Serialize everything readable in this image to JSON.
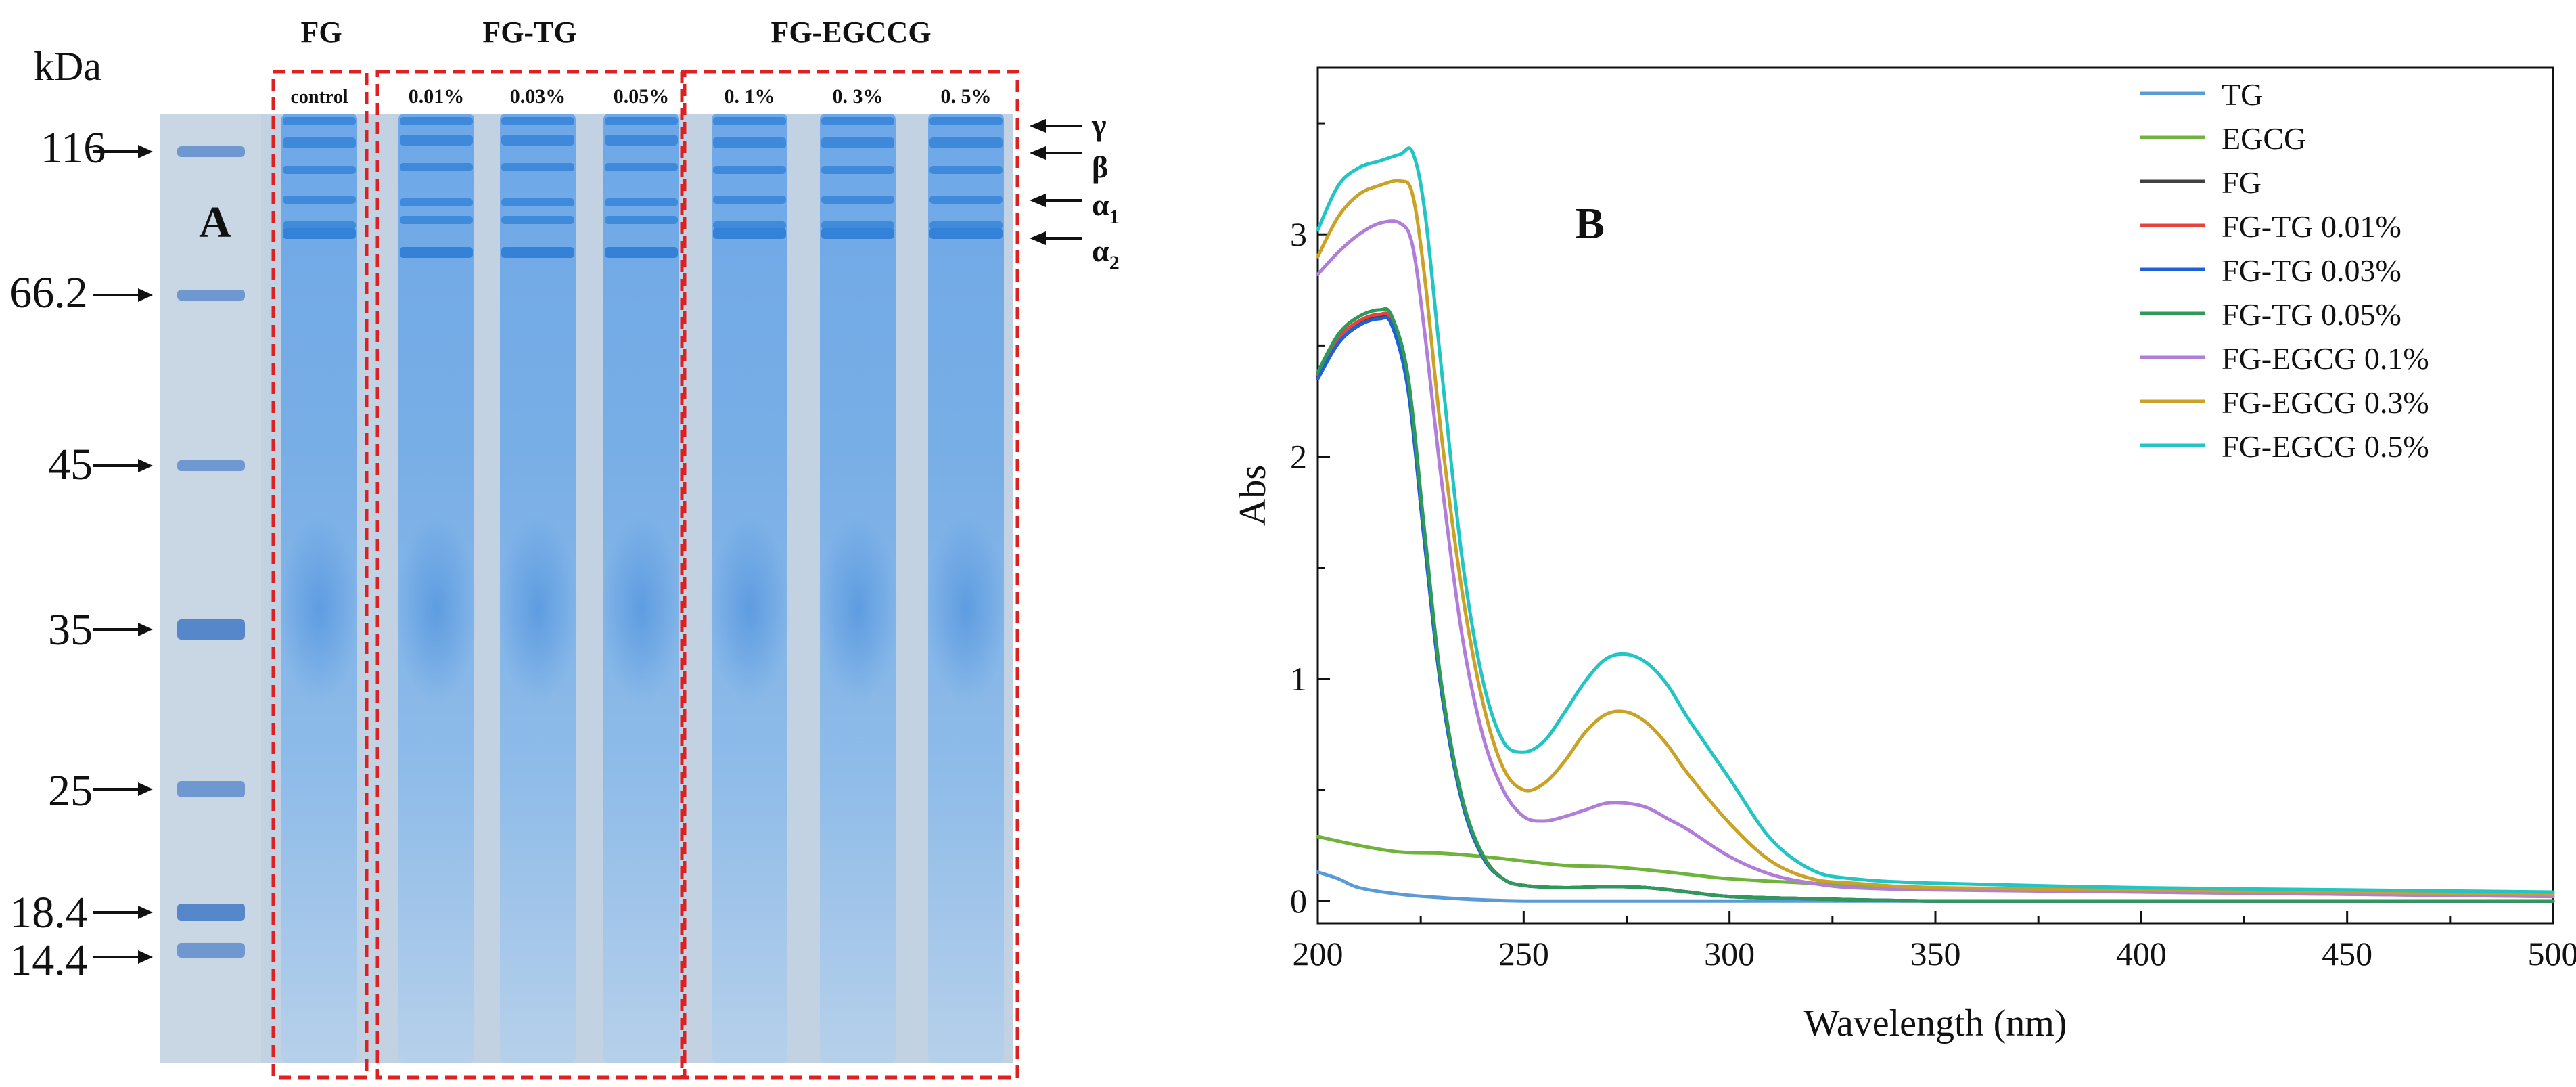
{
  "panel_a": {
    "label": "A",
    "kda_label": "kDa",
    "group_titles": [
      "FG",
      "FG-TG",
      "FG-EGCCG"
    ],
    "lanes": [
      "control",
      "0.01%",
      "0.03%",
      "0.05%",
      "0. 1%",
      "0. 3%",
      "0. 5%"
    ],
    "markers": [
      "116",
      "66.2",
      "45",
      "35",
      "25",
      "18.4",
      "14.4"
    ],
    "subunits": [
      {
        "symbol": "γ",
        "sub": ""
      },
      {
        "symbol": "β",
        "sub": ""
      },
      {
        "symbol": "α",
        "sub": "1"
      },
      {
        "symbol": "α",
        "sub": "2"
      }
    ],
    "colors": {
      "gel": "#bccdde",
      "band": "#2f7fd6",
      "box": "#e02020",
      "ladder": "#4f83c8"
    }
  },
  "chart_data": {
    "type": "line",
    "panel_label": "B",
    "title": "",
    "xlabel": "Wavelength (nm)",
    "ylabel": "Abs",
    "xlim": [
      200,
      500
    ],
    "ylim": [
      -0.1,
      3.75
    ],
    "xticks": [
      200,
      250,
      300,
      350,
      400,
      450,
      500
    ],
    "yticks": [
      0,
      1,
      2,
      3
    ],
    "grid": false,
    "legend_position": "top-right",
    "series": [
      {
        "name": "TG",
        "color": "#5b9bd5",
        "x": [
          200,
          205,
          210,
          220,
          230,
          240,
          250,
          275,
          300,
          350,
          400,
          450,
          500
        ],
        "y": [
          0.13,
          0.1,
          0.06,
          0.03,
          0.015,
          0.005,
          0.0,
          0.0,
          0.0,
          0.0,
          0.0,
          0.0,
          0.0
        ]
      },
      {
        "name": "EGCG",
        "color": "#70b33c",
        "x": [
          200,
          210,
          220,
          230,
          240,
          250,
          260,
          270,
          280,
          290,
          300,
          320,
          350,
          400,
          450,
          500
        ],
        "y": [
          0.29,
          0.25,
          0.22,
          0.215,
          0.2,
          0.18,
          0.16,
          0.155,
          0.14,
          0.12,
          0.1,
          0.08,
          0.06,
          0.04,
          0.03,
          0.02
        ]
      },
      {
        "name": "FG",
        "color": "#404040",
        "x": [
          200,
          205,
          210,
          215,
          218,
          222,
          226,
          230,
          235,
          240,
          245,
          250,
          260,
          270,
          280,
          290,
          300,
          320,
          350,
          400,
          450,
          500
        ],
        "y": [
          2.36,
          2.52,
          2.6,
          2.63,
          2.6,
          2.3,
          1.6,
          0.95,
          0.45,
          0.2,
          0.1,
          0.07,
          0.06,
          0.065,
          0.06,
          0.04,
          0.02,
          0.01,
          0.0,
          0.0,
          0.0,
          0.0
        ]
      },
      {
        "name": "FG-TG 0.01%",
        "color": "#e8423c",
        "x": [
          200,
          205,
          210,
          215,
          218,
          222,
          226,
          230,
          235,
          240,
          245,
          250,
          260,
          270,
          280,
          290,
          300,
          320,
          350,
          400,
          450,
          500
        ],
        "y": [
          2.37,
          2.53,
          2.61,
          2.64,
          2.61,
          2.32,
          1.62,
          0.96,
          0.46,
          0.21,
          0.1,
          0.07,
          0.06,
          0.065,
          0.06,
          0.04,
          0.02,
          0.01,
          0.0,
          0.0,
          0.0,
          0.0
        ]
      },
      {
        "name": "FG-TG 0.03%",
        "color": "#1f5fd8",
        "x": [
          200,
          205,
          210,
          215,
          218,
          222,
          226,
          230,
          235,
          240,
          245,
          250,
          260,
          270,
          280,
          290,
          300,
          320,
          350,
          400,
          450,
          500
        ],
        "y": [
          2.35,
          2.51,
          2.59,
          2.62,
          2.59,
          2.29,
          1.6,
          0.95,
          0.45,
          0.2,
          0.1,
          0.07,
          0.06,
          0.065,
          0.06,
          0.04,
          0.02,
          0.01,
          0.0,
          0.0,
          0.0,
          0.0
        ]
      },
      {
        "name": "FG-TG 0.05%",
        "color": "#2e9a5a",
        "x": [
          200,
          205,
          210,
          215,
          218,
          222,
          226,
          230,
          235,
          240,
          245,
          250,
          260,
          270,
          280,
          290,
          300,
          320,
          350,
          400,
          450,
          500
        ],
        "y": [
          2.38,
          2.55,
          2.63,
          2.66,
          2.63,
          2.35,
          1.65,
          0.98,
          0.47,
          0.21,
          0.1,
          0.07,
          0.06,
          0.065,
          0.06,
          0.04,
          0.02,
          0.01,
          0.0,
          0.0,
          0.0,
          0.0
        ]
      },
      {
        "name": "FG-EGCG 0.1%",
        "color": "#b07ed8",
        "x": [
          200,
          205,
          210,
          215,
          220,
          223,
          226,
          230,
          235,
          240,
          245,
          250,
          255,
          260,
          265,
          270,
          275,
          280,
          285,
          290,
          300,
          310,
          320,
          330,
          350,
          400,
          450,
          500
        ],
        "y": [
          2.82,
          2.92,
          3.0,
          3.05,
          3.05,
          2.95,
          2.55,
          1.9,
          1.2,
          0.75,
          0.5,
          0.38,
          0.36,
          0.38,
          0.41,
          0.44,
          0.44,
          0.42,
          0.37,
          0.32,
          0.2,
          0.12,
          0.08,
          0.06,
          0.05,
          0.04,
          0.03,
          0.02
        ]
      },
      {
        "name": "FG-EGCG 0.3%",
        "color": "#c9a227",
        "x": [
          200,
          205,
          210,
          215,
          220,
          223,
          226,
          230,
          235,
          240,
          245,
          250,
          255,
          260,
          265,
          270,
          275,
          280,
          285,
          290,
          300,
          310,
          320,
          330,
          350,
          400,
          450,
          500
        ],
        "y": [
          2.9,
          3.08,
          3.18,
          3.22,
          3.24,
          3.18,
          2.8,
          2.1,
          1.4,
          0.9,
          0.6,
          0.5,
          0.53,
          0.63,
          0.76,
          0.84,
          0.85,
          0.8,
          0.7,
          0.57,
          0.35,
          0.18,
          0.1,
          0.08,
          0.06,
          0.05,
          0.04,
          0.03
        ]
      },
      {
        "name": "FG-EGCG 0.5%",
        "color": "#22c4c4",
        "x": [
          200,
          205,
          210,
          215,
          220,
          223,
          226,
          230,
          235,
          240,
          245,
          250,
          255,
          260,
          265,
          270,
          275,
          280,
          285,
          290,
          300,
          310,
          320,
          330,
          350,
          400,
          450,
          500
        ],
        "y": [
          3.02,
          3.22,
          3.3,
          3.33,
          3.36,
          3.37,
          3.1,
          2.4,
          1.55,
          1.0,
          0.72,
          0.67,
          0.72,
          0.85,
          0.99,
          1.09,
          1.11,
          1.07,
          0.97,
          0.82,
          0.55,
          0.28,
          0.14,
          0.1,
          0.08,
          0.06,
          0.05,
          0.04
        ]
      }
    ]
  }
}
